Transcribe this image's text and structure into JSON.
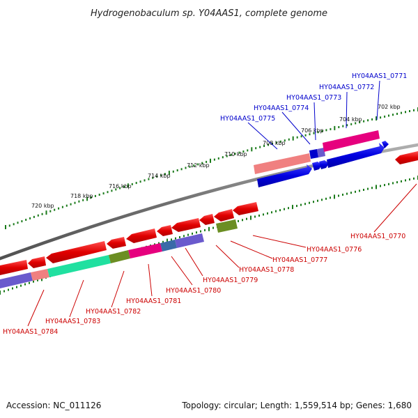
{
  "title": "Hydrogenobaculum sp. Y04AAS1, complete genome",
  "footer": {
    "accession": "Accession: NC_011126",
    "summary": "Topology: circular; Length: 1,559,514 bp; Genes: 1,680"
  },
  "scale_labels": [
    "720 kbp",
    "718 kbp",
    "716 kbp",
    "714 kbp",
    "712 kbp",
    "710 kbp",
    "708 kbp",
    "706 kbp",
    "704 kbp",
    "702 kbp"
  ],
  "genes_top": [
    "HY04AAS1_0771",
    "HY04AAS1_0772",
    "HY04AAS1_0773",
    "HY04AAS1_0774",
    "HY04AAS1_0775"
  ],
  "genes_bottom": [
    "HY04AAS1_0770",
    "HY04AAS1_0776",
    "HY04AAS1_0777",
    "HY04AAS1_0778",
    "HY04AAS1_0779",
    "HY04AAS1_0780",
    "HY04AAS1_0781",
    "HY04AAS1_0782",
    "HY04AAS1_0783",
    "HY04AAS1_0784"
  ],
  "colors": {
    "forward": "#0000e0",
    "reverse": "#e00000",
    "backbone": "#808080",
    "ticks": "#1a7a1a",
    "label_blue": "#0000cc",
    "label_red": "#cc0000",
    "pink": "#e6007e",
    "salmon": "#f08080",
    "teal": "#20e0a0",
    "olive": "#6b8e23",
    "slate": "#6a5acd"
  }
}
